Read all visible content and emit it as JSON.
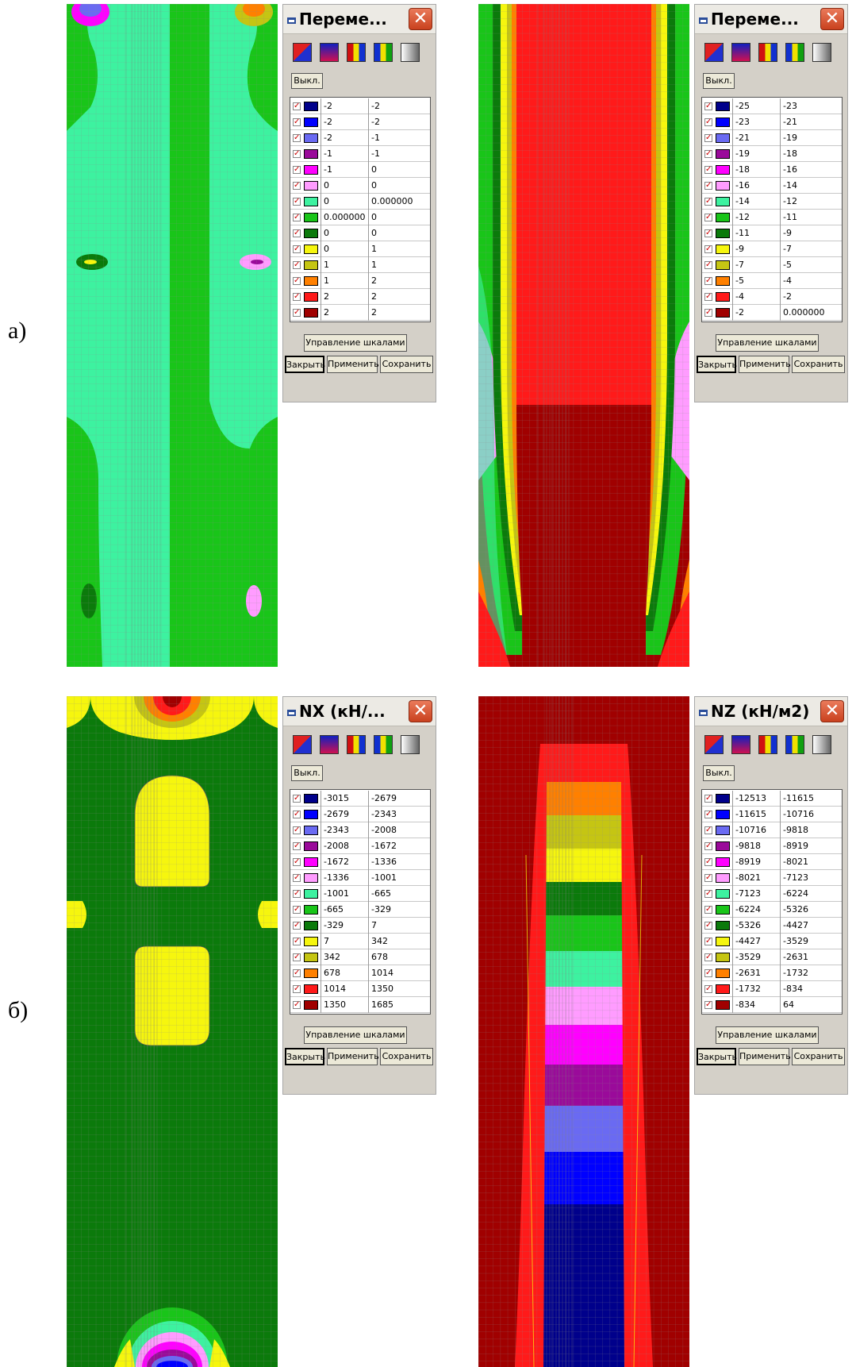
{
  "labels": {
    "a": "а)",
    "b": "б)"
  },
  "colors": {
    "navy": "#00008b",
    "blue": "#0000ff",
    "lightblue": "#6a6af2",
    "purple": "#9a0a9a",
    "magenta": "#ff00ff",
    "pink": "#ff9cff",
    "mint": "#3df2a0",
    "green": "#19c519",
    "darkgreen": "#0b7a0b",
    "yellow": "#f6f60e",
    "olive": "#c5c513",
    "orange": "#ff8000",
    "red": "#ff1a1a",
    "darkred": "#a00000"
  },
  "common": {
    "off_label": "Выкл.",
    "scales_label": "Управление шкалами",
    "close_label": "Закрыть",
    "apply_label": "Применить",
    "save_label": "Сохранить"
  },
  "panels": [
    {
      "title": "Переме...",
      "rows": [
        {
          "from": "-2",
          "to": "-2",
          "color": "navy"
        },
        {
          "from": "-2",
          "to": "-2",
          "color": "blue"
        },
        {
          "from": "-2",
          "to": "-1",
          "color": "lightblue"
        },
        {
          "from": "-1",
          "to": "-1",
          "color": "purple"
        },
        {
          "from": "-1",
          "to": "0",
          "color": "magenta"
        },
        {
          "from": "0",
          "to": "0",
          "color": "pink"
        },
        {
          "from": "0",
          "to": "0.000000",
          "color": "mint"
        },
        {
          "from": "0.000000",
          "to": "0",
          "color": "green"
        },
        {
          "from": "0",
          "to": "0",
          "color": "darkgreen"
        },
        {
          "from": "0",
          "to": "1",
          "color": "yellow"
        },
        {
          "from": "1",
          "to": "1",
          "color": "olive"
        },
        {
          "from": "1",
          "to": "2",
          "color": "orange"
        },
        {
          "from": "2",
          "to": "2",
          "color": "red"
        },
        {
          "from": "2",
          "to": "2",
          "color": "darkred"
        }
      ]
    },
    {
      "title": "Переме...",
      "rows": [
        {
          "from": "-25",
          "to": "-23",
          "color": "navy"
        },
        {
          "from": "-23",
          "to": "-21",
          "color": "blue"
        },
        {
          "from": "-21",
          "to": "-19",
          "color": "lightblue"
        },
        {
          "from": "-19",
          "to": "-18",
          "color": "purple"
        },
        {
          "from": "-18",
          "to": "-16",
          "color": "magenta"
        },
        {
          "from": "-16",
          "to": "-14",
          "color": "pink"
        },
        {
          "from": "-14",
          "to": "-12",
          "color": "mint"
        },
        {
          "from": "-12",
          "to": "-11",
          "color": "green"
        },
        {
          "from": "-11",
          "to": "-9",
          "color": "darkgreen"
        },
        {
          "from": "-9",
          "to": "-7",
          "color": "yellow"
        },
        {
          "from": "-7",
          "to": "-5",
          "color": "olive"
        },
        {
          "from": "-5",
          "to": "-4",
          "color": "orange"
        },
        {
          "from": "-4",
          "to": "-2",
          "color": "red"
        },
        {
          "from": "-2",
          "to": "0.000000",
          "color": "darkred"
        }
      ]
    },
    {
      "title": "NX (кН/...",
      "rows": [
        {
          "from": "-3015",
          "to": "-2679",
          "color": "navy"
        },
        {
          "from": "-2679",
          "to": "-2343",
          "color": "blue"
        },
        {
          "from": "-2343",
          "to": "-2008",
          "color": "lightblue"
        },
        {
          "from": "-2008",
          "to": "-1672",
          "color": "purple"
        },
        {
          "from": "-1672",
          "to": "-1336",
          "color": "magenta"
        },
        {
          "from": "-1336",
          "to": "-1001",
          "color": "pink"
        },
        {
          "from": "-1001",
          "to": "-665",
          "color": "mint"
        },
        {
          "from": "-665",
          "to": "-329",
          "color": "green"
        },
        {
          "from": "-329",
          "to": "7",
          "color": "darkgreen"
        },
        {
          "from": "7",
          "to": "342",
          "color": "yellow"
        },
        {
          "from": "342",
          "to": "678",
          "color": "olive"
        },
        {
          "from": "678",
          "to": "1014",
          "color": "orange"
        },
        {
          "from": "1014",
          "to": "1350",
          "color": "red"
        },
        {
          "from": "1350",
          "to": "1685",
          "color": "darkred"
        }
      ]
    },
    {
      "title": "NZ (кН/м2)",
      "rows": [
        {
          "from": "-12513",
          "to": "-11615",
          "color": "navy"
        },
        {
          "from": "-11615",
          "to": "-10716",
          "color": "blue"
        },
        {
          "from": "-10716",
          "to": "-9818",
          "color": "lightblue"
        },
        {
          "from": "-9818",
          "to": "-8919",
          "color": "purple"
        },
        {
          "from": "-8919",
          "to": "-8021",
          "color": "magenta"
        },
        {
          "from": "-8021",
          "to": "-7123",
          "color": "pink"
        },
        {
          "from": "-7123",
          "to": "-6224",
          "color": "mint"
        },
        {
          "from": "-6224",
          "to": "-5326",
          "color": "green"
        },
        {
          "from": "-5326",
          "to": "-4427",
          "color": "darkgreen"
        },
        {
          "from": "-4427",
          "to": "-3529",
          "color": "yellow"
        },
        {
          "from": "-3529",
          "to": "-2631",
          "color": "olive"
        },
        {
          "from": "-2631",
          "to": "-1732",
          "color": "orange"
        },
        {
          "from": "-1732",
          "to": "-834",
          "color": "red"
        },
        {
          "from": "-834",
          "to": "64",
          "color": "darkred"
        }
      ]
    }
  ]
}
